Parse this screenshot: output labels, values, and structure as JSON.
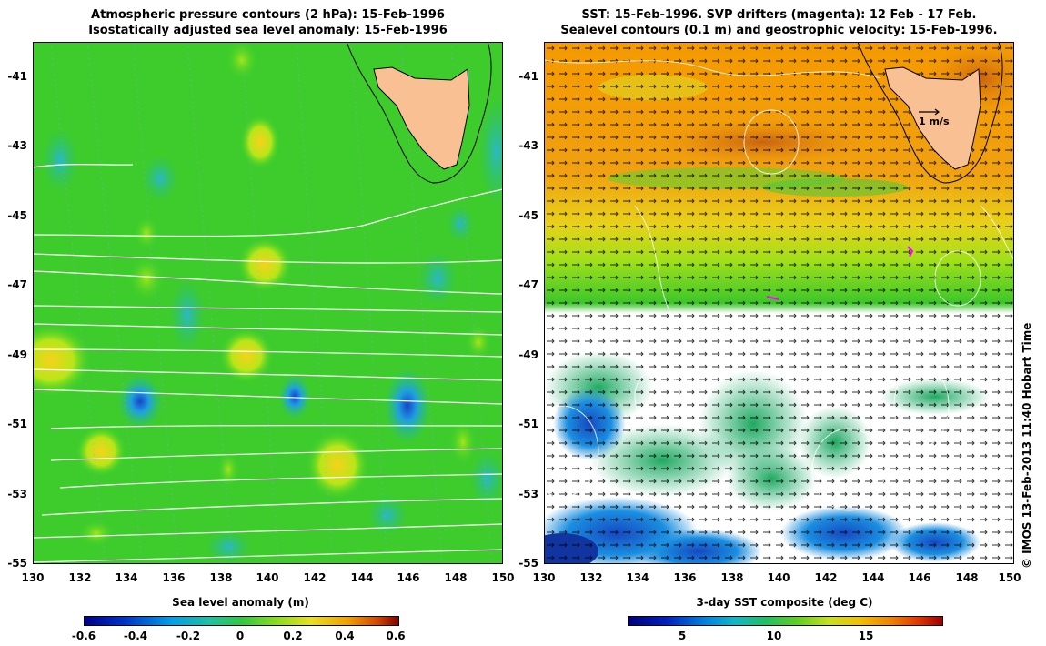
{
  "left_panel": {
    "title_line1": "Atmospheric pressure contours (2 hPa): 15-Feb-1996",
    "title_line2": "Isostatically adjusted sea level anomaly: 15-Feb-1996",
    "y_ticks": [
      "-41",
      "-43",
      "-45",
      "-47",
      "-49",
      "-51",
      "-53",
      "-55"
    ],
    "x_ticks": [
      "130",
      "132",
      "134",
      "136",
      "138",
      "140",
      "142",
      "144",
      "146",
      "148",
      "150"
    ],
    "colorbar_title": "Sea level anomaly (m)",
    "colorbar_ticks": [
      "-0.6",
      "-0.4",
      "-0.2",
      "0",
      "0.2",
      "0.4",
      "0.6"
    ],
    "colorbar_range": [
      -0.6,
      0.6
    ]
  },
  "right_panel": {
    "title_line1": "SST: 15-Feb-1996. SVP drifters (magenta): 12 Feb - 17 Feb.",
    "title_line2": "Sealevel contours (0.1 m) and geostrophic velocity: 15-Feb-1996.",
    "y_ticks": [
      "-41",
      "-43",
      "-45",
      "-47",
      "-49",
      "-51",
      "-53",
      "-55"
    ],
    "x_ticks": [
      "130",
      "132",
      "134",
      "136",
      "138",
      "140",
      "142",
      "144",
      "146",
      "148",
      "150"
    ],
    "velocity_scale_label": "1 m/s",
    "colorbar_title": "3-day SST composite (deg C)",
    "colorbar_ticks": [
      "5",
      "10",
      "15"
    ],
    "colorbar_range": [
      2,
      19
    ]
  },
  "credit": "© IMOS 13-Feb-2013 11:40 Hobart Time",
  "colors": {
    "land": "#f9c193",
    "coast": "#000000",
    "slp_base": "#33cc33",
    "sst_warm": "#f5a000",
    "sst_mid": "#44cc33",
    "sst_cold": "#1c6ecc"
  }
}
